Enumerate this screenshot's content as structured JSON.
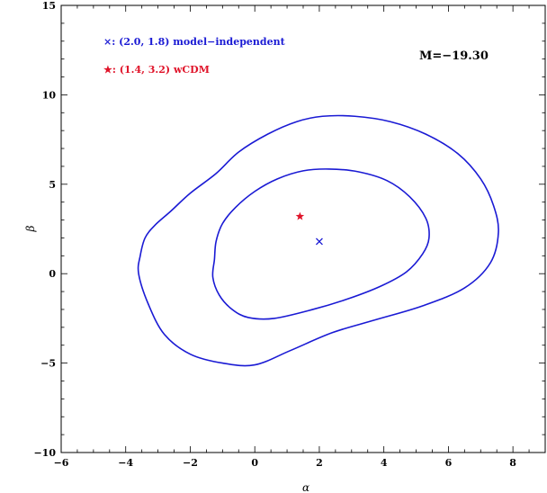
{
  "chart_data": {
    "type": "contour",
    "xlabel": "α",
    "ylabel": "β",
    "xlim": [
      -6,
      9
    ],
    "ylim": [
      -10,
      15
    ],
    "xticks": [
      -6,
      -4,
      -2,
      0,
      2,
      4,
      6,
      8
    ],
    "yticks": [
      -10,
      -5,
      0,
      5,
      10,
      15
    ],
    "x_tick_labels": [
      "−6",
      "−4",
      "−2",
      "0",
      "2",
      "4",
      "6",
      "8"
    ],
    "y_tick_labels": [
      "−10",
      "−5",
      "0",
      "5",
      "10",
      "15"
    ],
    "grid": false,
    "annotation": "M=−19.30",
    "legend": [
      {
        "symbol": "×",
        "text": ": (2.0, 1.8) model−independent",
        "color": "#1a1ad4"
      },
      {
        "symbol": "★",
        "text": ": (1.4, 3.2) wCDM",
        "color": "#e0142a"
      }
    ],
    "points": [
      {
        "name": "model-independent",
        "marker": "x",
        "x": 2.0,
        "y": 1.8,
        "color": "#1a1ad4"
      },
      {
        "name": "wCDM",
        "marker": "star",
        "x": 1.4,
        "y": 3.2,
        "color": "#e0142a"
      }
    ],
    "contours": [
      {
        "level": "inner",
        "color": "#1a1ad4",
        "points": [
          [
            -1.25,
            0.8
          ],
          [
            -1.2,
            1.8
          ],
          [
            -1,
            2.8
          ],
          [
            -0.6,
            3.7
          ],
          [
            0,
            4.6
          ],
          [
            0.7,
            5.3
          ],
          [
            1.5,
            5.75
          ],
          [
            2.3,
            5.85
          ],
          [
            3.2,
            5.7
          ],
          [
            4.1,
            5.2
          ],
          [
            4.8,
            4.3
          ],
          [
            5.3,
            3.1
          ],
          [
            5.4,
            2
          ],
          [
            5.2,
            1.1
          ],
          [
            4.7,
            0.1
          ],
          [
            3.9,
            -0.7
          ],
          [
            2.9,
            -1.4
          ],
          [
            1.8,
            -2
          ],
          [
            0.6,
            -2.5
          ],
          [
            -0.2,
            -2.45
          ],
          [
            -0.7,
            -2
          ],
          [
            -1.1,
            -1.2
          ],
          [
            -1.3,
            -0.2
          ]
        ]
      },
      {
        "level": "outer",
        "color": "#1a1ad4",
        "points": [
          [
            -3.55,
            1
          ],
          [
            -3.4,
            2
          ],
          [
            -3.1,
            2.7
          ],
          [
            -2.6,
            3.5
          ],
          [
            -2,
            4.5
          ],
          [
            -1.2,
            5.6
          ],
          [
            -0.5,
            6.8
          ],
          [
            0.4,
            7.8
          ],
          [
            1.3,
            8.5
          ],
          [
            2.1,
            8.8
          ],
          [
            3.1,
            8.8
          ],
          [
            4.2,
            8.5
          ],
          [
            5.3,
            7.8
          ],
          [
            6.3,
            6.7
          ],
          [
            7,
            5.3
          ],
          [
            7.4,
            3.8
          ],
          [
            7.55,
            2.3
          ],
          [
            7.3,
            0.6
          ],
          [
            6.5,
            -0.8
          ],
          [
            5.2,
            -1.8
          ],
          [
            3.7,
            -2.6
          ],
          [
            2.4,
            -3.3
          ],
          [
            1.1,
            -4.3
          ],
          [
            0,
            -5.1
          ],
          [
            -1,
            -5
          ],
          [
            -2,
            -4.5
          ],
          [
            -2.8,
            -3.4
          ],
          [
            -3.3,
            -1.7
          ],
          [
            -3.6,
            0
          ]
        ]
      }
    ]
  }
}
